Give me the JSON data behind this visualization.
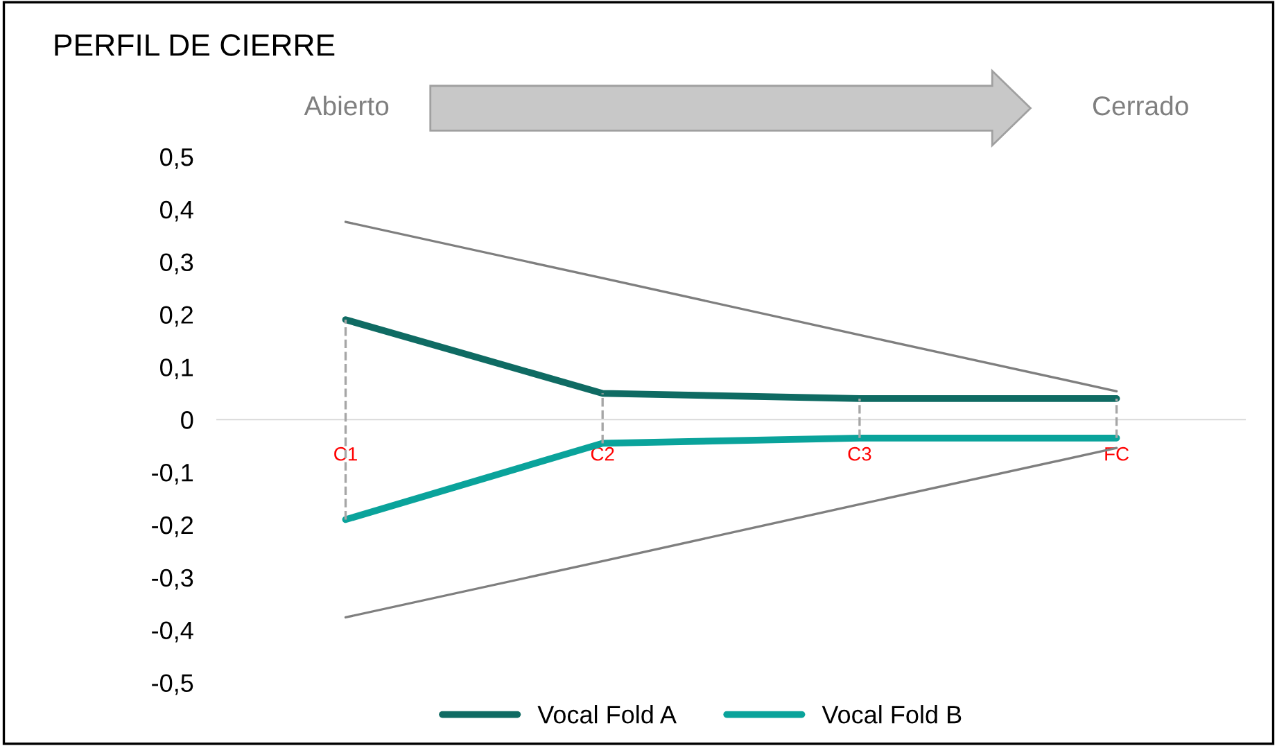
{
  "chart_data": {
    "type": "line",
    "title": "PERFIL DE CIERRE",
    "annotations": [
      "Abierto",
      "Cerrado"
    ],
    "categories": [
      "C1",
      "C2",
      "C3",
      "FC"
    ],
    "ylim": [
      -0.5,
      0.5
    ],
    "yticks": [
      {
        "value": -0.5,
        "label": "-0,5"
      },
      {
        "value": -0.4,
        "label": "-0,4"
      },
      {
        "value": -0.3,
        "label": "-0,3"
      },
      {
        "value": -0.2,
        "label": "-0,2"
      },
      {
        "value": -0.1,
        "label": "-0,1"
      },
      {
        "value": 0,
        "label": "0"
      },
      {
        "value": 0.1,
        "label": "0,1"
      },
      {
        "value": 0.2,
        "label": "0,2"
      },
      {
        "value": 0.3,
        "label": "0,3"
      },
      {
        "value": 0.4,
        "label": "0,4"
      },
      {
        "value": 0.5,
        "label": "0,5"
      }
    ],
    "series": [
      {
        "name": "Vocal Fold A",
        "color": "#0f6b63",
        "values": [
          0.19,
          0.05,
          0.04,
          0.04
        ],
        "errors": [
          [
            -0.19,
            0.19
          ],
          [
            -0.045,
            0.05
          ],
          [
            -0.035,
            0.04
          ],
          [
            -0.035,
            0.04
          ]
        ]
      },
      {
        "name": "Vocal Fold B",
        "color": "#0aa39b",
        "values": [
          -0.19,
          -0.045,
          -0.035,
          -0.035
        ]
      },
      {
        "type": "line",
        "color": "#7f7f7f",
        "values": [
          0.376,
          0.269,
          0.161,
          0.054
        ]
      },
      {
        "type": "line",
        "color": "#7f7f7f",
        "values": [
          -0.376,
          -0.269,
          -0.161,
          -0.054
        ]
      }
    ],
    "grid": false,
    "legend": "bottom",
    "marker": "none",
    "line_style": "solid"
  }
}
